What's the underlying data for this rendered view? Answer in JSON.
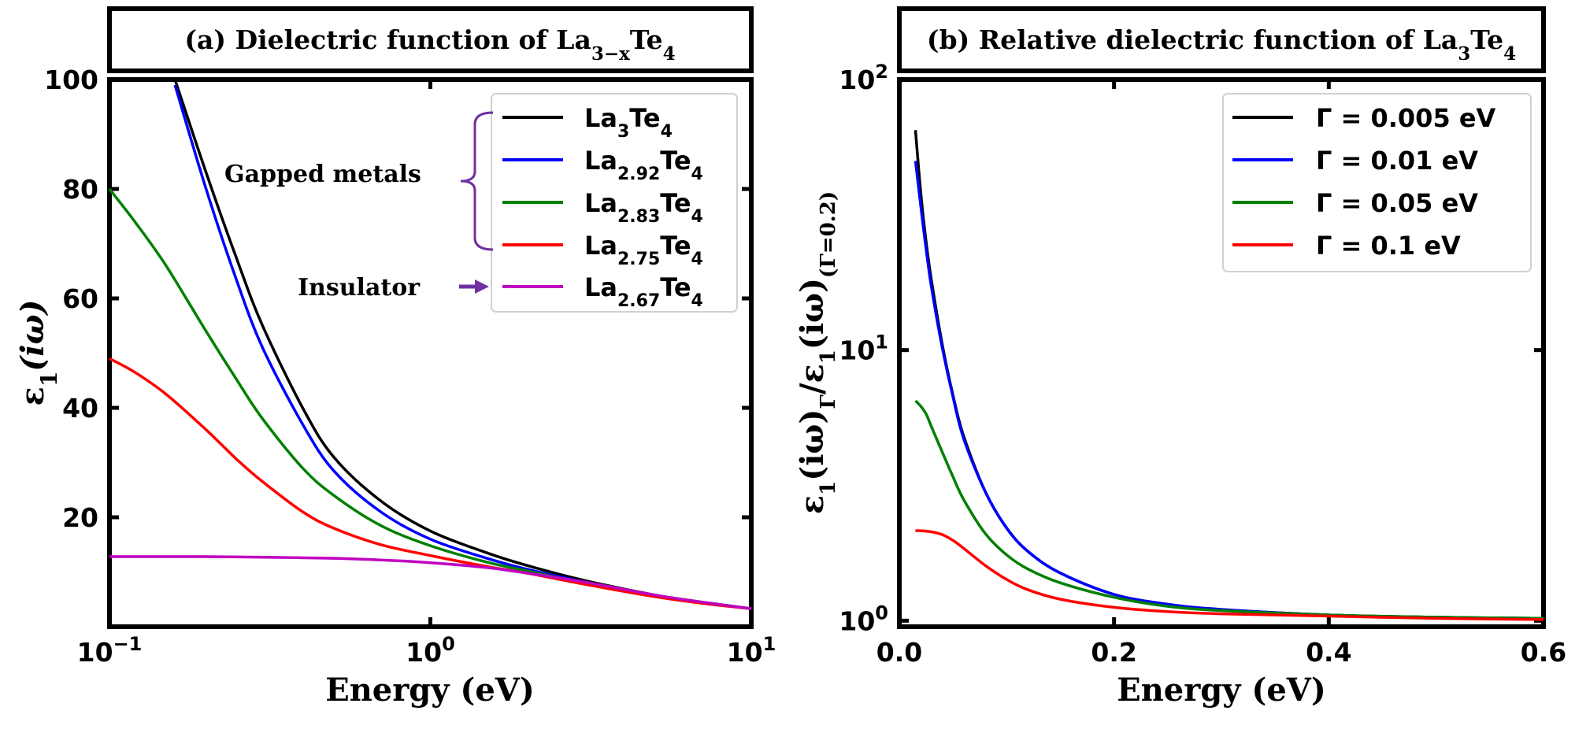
{
  "chart_data": [
    {
      "type": "line",
      "panel": "a",
      "title": "(a) Dielectric function of La",
      "title_sub": "3−x",
      "title_tail": "Te",
      "title_tail_sub": "4",
      "xscale": "log",
      "xlim": [
        0.1,
        10
      ],
      "ylim": [
        0,
        100
      ],
      "xlabel": "Energy (eV)",
      "ylabel": "ε",
      "ylabel_sub": "1",
      "ylabel_tail": "(iω)",
      "x_ticks": [
        {
          "value": 0.1,
          "base": "10",
          "exp": "−1"
        },
        {
          "value": 1,
          "base": "10",
          "exp": "0"
        },
        {
          "value": 10,
          "base": "10",
          "exp": "1"
        }
      ],
      "y_ticks": [
        {
          "value": 20,
          "label": "20"
        },
        {
          "value": 40,
          "label": "40"
        },
        {
          "value": 60,
          "label": "60"
        },
        {
          "value": 80,
          "label": "80"
        },
        {
          "value": 100,
          "label": "100"
        }
      ],
      "legend_position": "top-right",
      "annotations": [
        {
          "text": "Gapped metals",
          "kind": "brace"
        },
        {
          "text": "Insulator",
          "kind": "arrow"
        }
      ],
      "series": [
        {
          "name": "La3Te4",
          "label_main": "La",
          "label_sub": "3",
          "label_tail": "Te",
          "label_tail_sub": "4",
          "color": "#000000",
          "x": [
            0.16,
            0.2,
            0.25,
            0.3,
            0.4,
            0.5,
            0.7,
            1.0,
            1.5,
            2.0,
            3.0,
            5.0,
            7.0,
            10.0
          ],
          "y": [
            100,
            83,
            67,
            55,
            40,
            31,
            23,
            17.5,
            13.5,
            11.2,
            8.5,
            5.8,
            4.5,
            3.3
          ]
        },
        {
          "name": "La2.92Te4",
          "label_main": "La",
          "label_sub": "2.92",
          "label_tail": "Te",
          "label_tail_sub": "4",
          "color": "#0000ff",
          "x": [
            0.16,
            0.2,
            0.25,
            0.3,
            0.4,
            0.5,
            0.7,
            1.0,
            1.5,
            2.0,
            3.0,
            5.0,
            7.0,
            10.0
          ],
          "y": [
            99,
            80,
            63,
            51,
            37,
            28.5,
            21,
            16,
            12.5,
            10.5,
            8.2,
            5.7,
            4.4,
            3.3
          ]
        },
        {
          "name": "La2.83Te4",
          "label_main": "La",
          "label_sub": "2.83",
          "label_tail": "Te",
          "label_tail_sub": "4",
          "color": "#008000",
          "x": [
            0.1,
            0.12,
            0.15,
            0.2,
            0.25,
            0.3,
            0.4,
            0.5,
            0.7,
            1.0,
            1.5,
            2.0,
            3.0,
            5.0,
            7.0,
            10.0
          ],
          "y": [
            80,
            74,
            66,
            54,
            45,
            38,
            29,
            24,
            18.5,
            14.8,
            11.8,
            10.2,
            8.0,
            5.6,
            4.4,
            3.3
          ]
        },
        {
          "name": "La2.75Te4",
          "label_main": "La",
          "label_sub": "2.75",
          "label_tail": "Te",
          "label_tail_sub": "4",
          "color": "#ff0000",
          "x": [
            0.1,
            0.12,
            0.15,
            0.2,
            0.25,
            0.3,
            0.4,
            0.5,
            0.7,
            1.0,
            1.5,
            2.0,
            3.0,
            5.0,
            7.0,
            10.0
          ],
          "y": [
            49,
            46.5,
            42.5,
            36,
            30.5,
            26.5,
            21,
            18,
            15,
            13,
            11,
            9.8,
            7.8,
            5.5,
            4.3,
            3.3
          ]
        },
        {
          "name": "La2.67Te4",
          "label_main": "La",
          "label_sub": "2.67",
          "label_tail": "Te",
          "label_tail_sub": "4",
          "color": "#c000c0",
          "x": [
            0.1,
            0.2,
            0.3,
            0.5,
            0.7,
            1.0,
            1.5,
            2.0,
            3.0,
            5.0,
            7.0,
            10.0
          ],
          "y": [
            12.8,
            12.8,
            12.7,
            12.5,
            12.2,
            11.7,
            10.8,
            9.8,
            8.2,
            5.8,
            4.5,
            3.3
          ]
        }
      ]
    },
    {
      "type": "line",
      "panel": "b",
      "title": "(b) Relative dielectric function of La",
      "title_sub": "3",
      "title_tail": "Te",
      "title_tail_sub": "4",
      "xscale": "linear",
      "yscale": "log",
      "xlim": [
        0.0,
        0.6
      ],
      "ylim": [
        0.95,
        100
      ],
      "xlabel": "Energy (eV)",
      "ylabel_parts": [
        "ε",
        "1",
        "(iω)",
        "Γ",
        "/ε",
        "1",
        "(iω)",
        "(Γ=0.2)"
      ],
      "x_ticks": [
        {
          "value": 0.0,
          "label": "0.0"
        },
        {
          "value": 0.2,
          "label": "0.2"
        },
        {
          "value": 0.4,
          "label": "0.4"
        },
        {
          "value": 0.6,
          "label": "0.6"
        }
      ],
      "y_ticks": [
        {
          "value": 1,
          "base": "10",
          "exp": "0"
        },
        {
          "value": 10,
          "base": "10",
          "exp": "1"
        },
        {
          "value": 100,
          "base": "10",
          "exp": "2"
        }
      ],
      "legend_position": "top-right",
      "series": [
        {
          "name": "Γ = 0.005 eV",
          "color": "#000000",
          "x": [
            0.015,
            0.02,
            0.025,
            0.03,
            0.04,
            0.05,
            0.06,
            0.08,
            0.1,
            0.12,
            0.15,
            0.2,
            0.25,
            0.3,
            0.4,
            0.5,
            0.6
          ],
          "y": [
            65,
            38,
            25,
            18,
            10.5,
            6.8,
            4.8,
            3.0,
            2.2,
            1.8,
            1.5,
            1.25,
            1.15,
            1.1,
            1.05,
            1.03,
            1.02
          ]
        },
        {
          "name": "Γ = 0.01 eV",
          "color": "#0000ff",
          "x": [
            0.015,
            0.02,
            0.025,
            0.03,
            0.04,
            0.05,
            0.06,
            0.08,
            0.1,
            0.12,
            0.15,
            0.2,
            0.25,
            0.3,
            0.4,
            0.5,
            0.6
          ],
          "y": [
            50,
            34,
            23.5,
            17,
            10.2,
            6.7,
            4.7,
            3.0,
            2.2,
            1.8,
            1.5,
            1.25,
            1.15,
            1.1,
            1.05,
            1.03,
            1.02
          ]
        },
        {
          "name": "Γ = 0.05 eV",
          "color": "#008000",
          "x": [
            0.015,
            0.02,
            0.025,
            0.03,
            0.04,
            0.05,
            0.06,
            0.08,
            0.1,
            0.12,
            0.15,
            0.2,
            0.25,
            0.3,
            0.4,
            0.5,
            0.6
          ],
          "y": [
            6.5,
            6.2,
            5.8,
            5.2,
            4.2,
            3.4,
            2.8,
            2.1,
            1.75,
            1.55,
            1.38,
            1.22,
            1.13,
            1.09,
            1.05,
            1.03,
            1.02
          ]
        },
        {
          "name": "Γ = 0.1 eV",
          "color": "#ff0000",
          "x": [
            0.015,
            0.02,
            0.03,
            0.04,
            0.05,
            0.06,
            0.08,
            0.1,
            0.12,
            0.15,
            0.2,
            0.25,
            0.3,
            0.4,
            0.5,
            0.6
          ],
          "y": [
            2.15,
            2.15,
            2.13,
            2.08,
            1.98,
            1.85,
            1.6,
            1.42,
            1.3,
            1.2,
            1.12,
            1.08,
            1.06,
            1.04,
            1.02,
            1.01
          ]
        }
      ]
    }
  ]
}
